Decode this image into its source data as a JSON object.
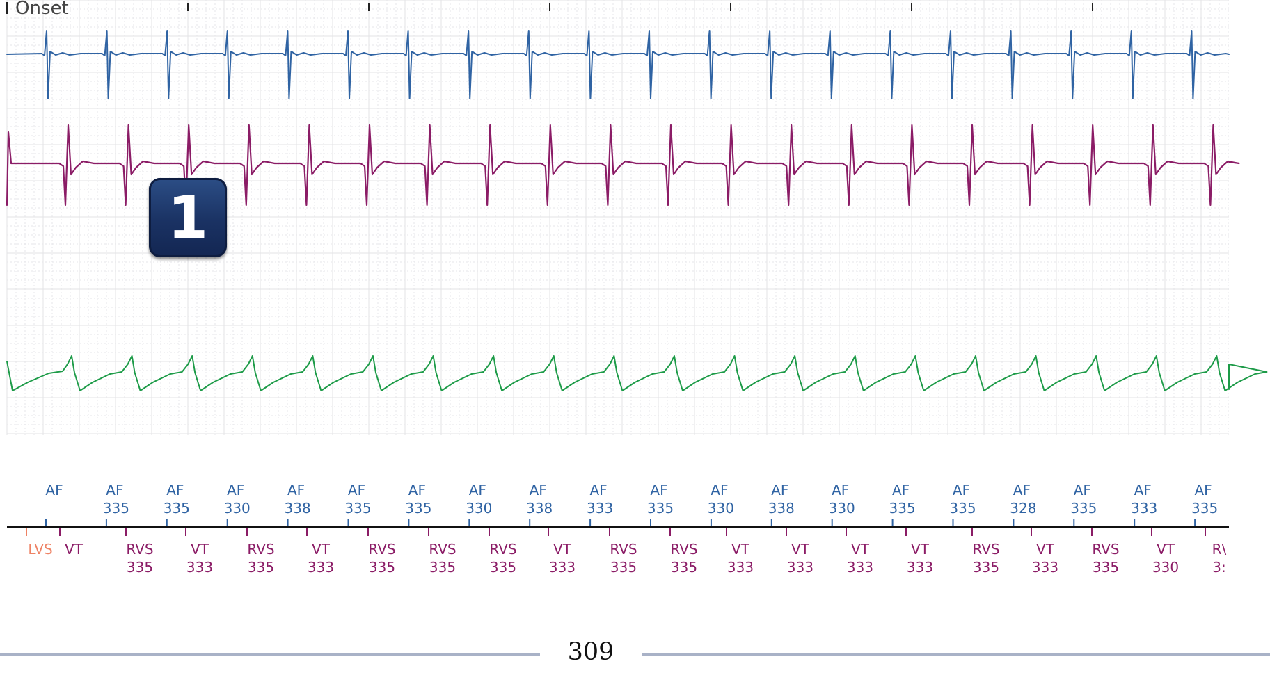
{
  "onset_label": "Onset",
  "callout_number": "1",
  "page_number": "309",
  "colors": {
    "atrial": "#2f63a3",
    "ventricular": "#8b1c66",
    "shock": "#1d9b48",
    "lvs": "#ee8264",
    "axis": "#111111",
    "badge": "#1a3263",
    "footer_rule": "#a9b2c7"
  },
  "icons": {
    "onset_marker": "tick-mark-icon"
  },
  "atrial_markers": [
    {
      "label": "AF",
      "interval": ""
    },
    {
      "label": "AF",
      "interval": "335"
    },
    {
      "label": "AF",
      "interval": "335"
    },
    {
      "label": "AF",
      "interval": "330"
    },
    {
      "label": "AF",
      "interval": "338"
    },
    {
      "label": "AF",
      "interval": "335"
    },
    {
      "label": "AF",
      "interval": "335"
    },
    {
      "label": "AF",
      "interval": "330"
    },
    {
      "label": "AF",
      "interval": "338"
    },
    {
      "label": "AF",
      "interval": "333"
    },
    {
      "label": "AF",
      "interval": "335"
    },
    {
      "label": "AF",
      "interval": "330"
    },
    {
      "label": "AF",
      "interval": "338"
    },
    {
      "label": "AF",
      "interval": "330"
    },
    {
      "label": "AF",
      "interval": "335"
    },
    {
      "label": "AF",
      "interval": "335"
    },
    {
      "label": "AF",
      "interval": "328"
    },
    {
      "label": "AF",
      "interval": "335"
    },
    {
      "label": "AF",
      "interval": "333"
    },
    {
      "label": "AF",
      "interval": "335"
    }
  ],
  "ventricular_markers": [
    {
      "label": "LVS",
      "interval": "",
      "kind": "lvs"
    },
    {
      "label": "VT",
      "interval": "",
      "kind": "v"
    },
    {
      "label": "RVS",
      "interval": "335",
      "kind": "v"
    },
    {
      "label": "VT",
      "interval": "333",
      "kind": "v"
    },
    {
      "label": "RVS",
      "interval": "335",
      "kind": "v"
    },
    {
      "label": "VT",
      "interval": "333",
      "kind": "v"
    },
    {
      "label": "RVS",
      "interval": "335",
      "kind": "v"
    },
    {
      "label": "RVS",
      "interval": "335",
      "kind": "v"
    },
    {
      "label": "RVS",
      "interval": "335",
      "kind": "v"
    },
    {
      "label": "VT",
      "interval": "333",
      "kind": "v"
    },
    {
      "label": "RVS",
      "interval": "335",
      "kind": "v"
    },
    {
      "label": "RVS",
      "interval": "335",
      "kind": "v"
    },
    {
      "label": "VT",
      "interval": "333",
      "kind": "v"
    },
    {
      "label": "VT",
      "interval": "333",
      "kind": "v"
    },
    {
      "label": "VT",
      "interval": "333",
      "kind": "v"
    },
    {
      "label": "VT",
      "interval": "333",
      "kind": "v"
    },
    {
      "label": "RVS",
      "interval": "335",
      "kind": "v"
    },
    {
      "label": "VT",
      "interval": "333",
      "kind": "v"
    },
    {
      "label": "RVS",
      "interval": "335",
      "kind": "v"
    },
    {
      "label": "VT",
      "interval": "330",
      "kind": "v"
    },
    {
      "label": "R\\",
      "interval": "3:",
      "kind": "v"
    }
  ]
}
